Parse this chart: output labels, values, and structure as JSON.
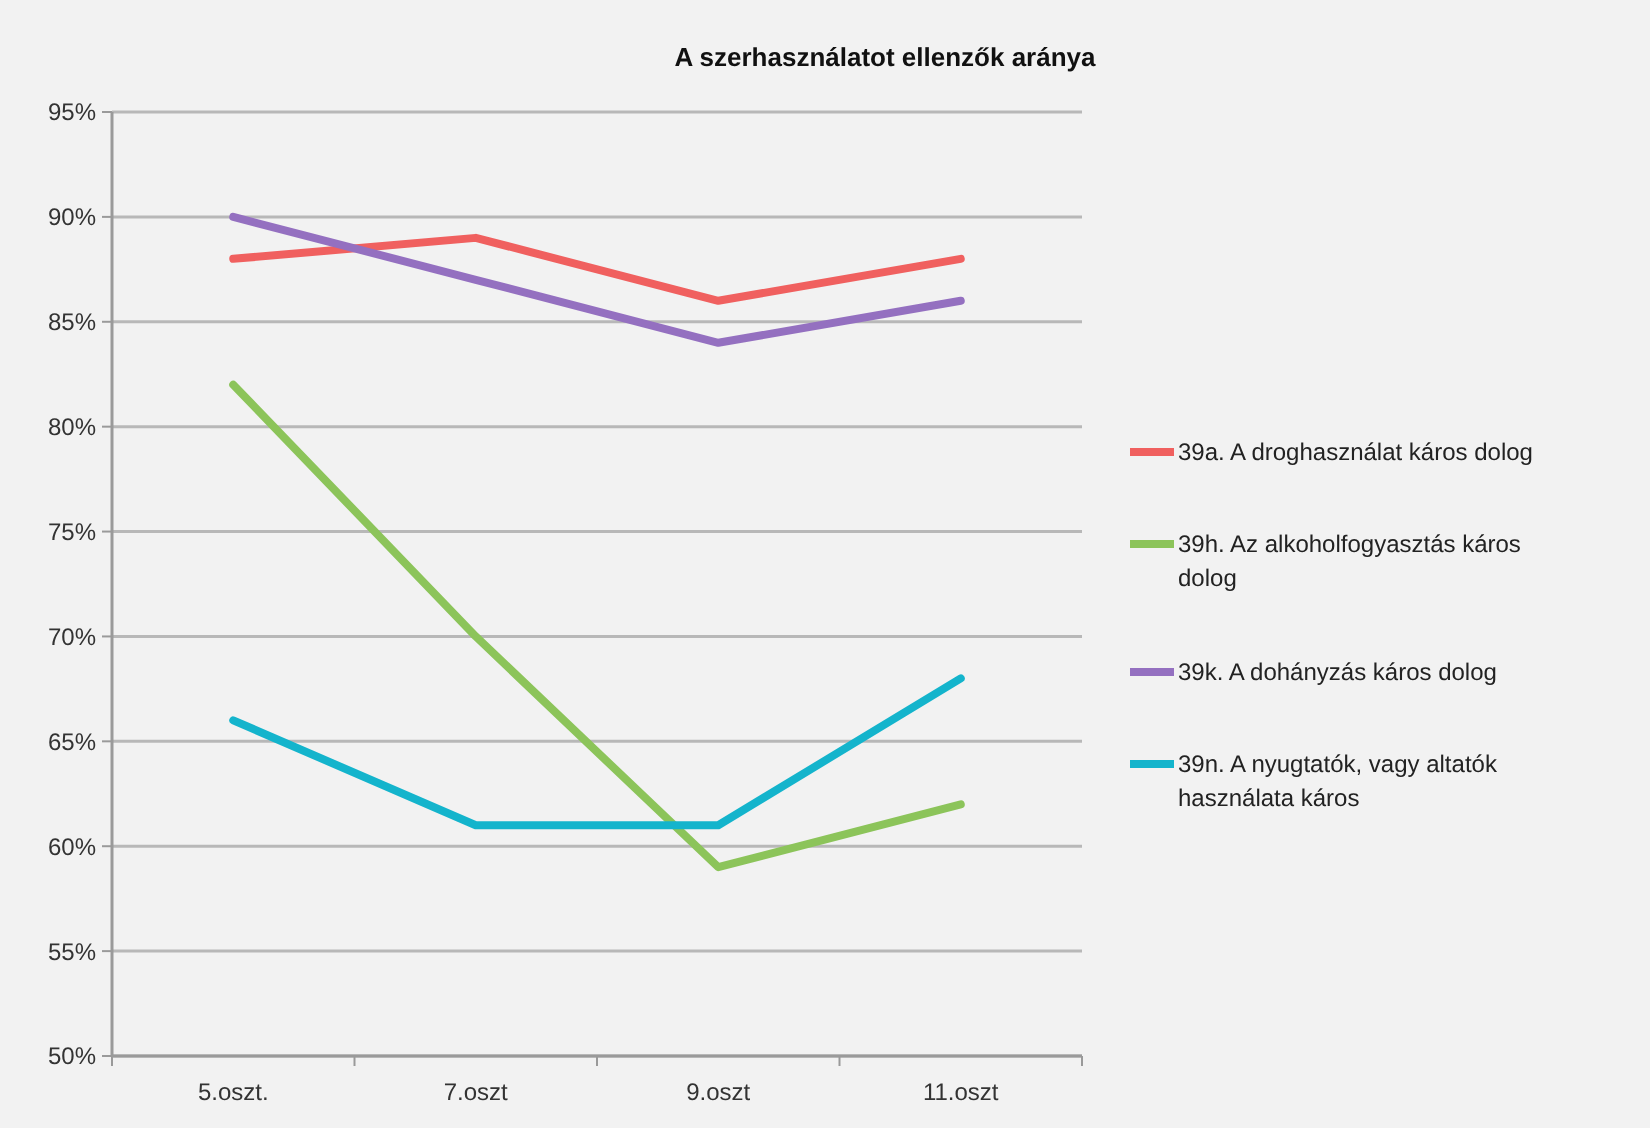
{
  "chart_data": {
    "type": "line",
    "title": "A szerhasználatot ellenzők aránya",
    "categories": [
      "5.oszt.",
      "7.oszt",
      "9.oszt",
      "11.oszt"
    ],
    "series": [
      {
        "name": "39a. A droghasználat káros dolog",
        "color": "#f0605f",
        "values": [
          88,
          89,
          86,
          88
        ]
      },
      {
        "name": "39h. Az alkoholfogyasztás káros dolog",
        "color": "#8cc45a",
        "values": [
          82,
          70,
          59,
          62
        ]
      },
      {
        "name": "39k. A dohányzás káros dolog",
        "color": "#9470c0",
        "values": [
          90,
          87,
          84,
          86
        ]
      },
      {
        "name": "39n. A nyugtatók, vagy altatók használata káros",
        "color": "#14b4cc",
        "values": [
          66,
          61,
          61,
          68
        ]
      }
    ],
    "ylim": [
      50,
      95
    ],
    "yticks": [
      {
        "value": 50,
        "label": "50%"
      },
      {
        "value": 55,
        "label": "55%"
      },
      {
        "value": 60,
        "label": "60%"
      },
      {
        "value": 65,
        "label": "65%"
      },
      {
        "value": 70,
        "label": "70%"
      },
      {
        "value": 75,
        "label": "75%"
      },
      {
        "value": 80,
        "label": "80%"
      },
      {
        "value": 85,
        "label": "85%"
      },
      {
        "value": 90,
        "label": "90%"
      },
      {
        "value": 95,
        "label": "95%"
      }
    ],
    "grid": "y",
    "legend": "right",
    "marker": "none",
    "line_style": "solid"
  }
}
